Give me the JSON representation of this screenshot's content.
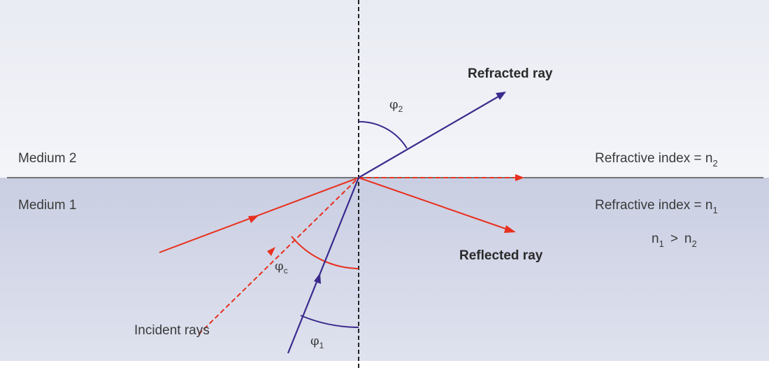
{
  "medium_upper": {
    "label": "Medium 2",
    "index_label": "Refractive index = n",
    "index_sub": "2"
  },
  "medium_lower": {
    "label": "Medium 1",
    "index_label": "Refractive index = n",
    "index_sub": "1"
  },
  "inequality": {
    "left": "n",
    "left_sub": "1",
    "op": ">",
    "right": "n",
    "right_sub": "2"
  },
  "rays": {
    "refracted": "Refracted ray",
    "reflected": "Reflected ray",
    "incident": "Incident rays"
  },
  "angles": {
    "phi_symbol": "φ",
    "phi1_sub": "1",
    "phi2_sub": "2",
    "phic_sub": "c"
  },
  "colors": {
    "medium_upper_bg": "#eef0f6",
    "medium_lower_bg": "#d2d6e6",
    "red_ray": "#e8301e",
    "blue_ray": "#3a2a8c",
    "normal_line": "#222222",
    "interface_line": "#333333"
  }
}
